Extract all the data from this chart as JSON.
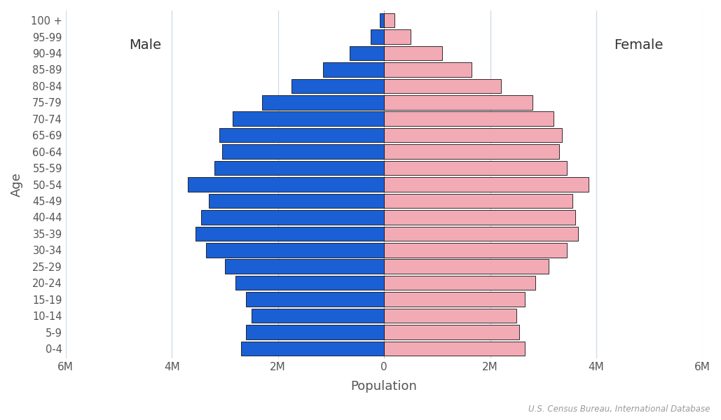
{
  "age_groups": [
    "0-4",
    "5-9",
    "10-14",
    "15-19",
    "20-24",
    "25-29",
    "30-34",
    "35-39",
    "40-44",
    "45-49",
    "50-54",
    "55-59",
    "60-64",
    "65-69",
    "70-74",
    "75-79",
    "80-84",
    "85-89",
    "90-94",
    "95-99",
    "100 +"
  ],
  "male": [
    2.7,
    2.6,
    2.5,
    2.6,
    2.8,
    3.0,
    3.35,
    3.55,
    3.45,
    3.3,
    3.7,
    3.2,
    3.05,
    3.1,
    2.85,
    2.3,
    1.75,
    1.15,
    0.65,
    0.25,
    0.08
  ],
  "female": [
    2.65,
    2.55,
    2.5,
    2.65,
    2.85,
    3.1,
    3.45,
    3.65,
    3.6,
    3.55,
    3.85,
    3.45,
    3.3,
    3.35,
    3.2,
    2.8,
    2.2,
    1.65,
    1.1,
    0.5,
    0.2
  ],
  "male_color": "#1a5fd4",
  "female_color": "#f2aab5",
  "edge_color": "#111111",
  "bar_edge_width": 0.6,
  "xlabel": "Population",
  "ylabel": "Age",
  "xlim": [
    -6,
    6
  ],
  "xticks": [
    -6,
    -4,
    -2,
    0,
    2,
    4,
    6
  ],
  "xtick_labels": [
    "6M",
    "4M",
    "2M",
    "0",
    "2M",
    "4M",
    "6M"
  ],
  "male_label": "Male",
  "female_label": "Female",
  "source_text": "U.S. Census Bureau, International Database",
  "background_color": "#ffffff",
  "grid_color": "#ccd8e8",
  "label_fontsize": 13,
  "tick_fontsize": 11,
  "ytick_fontsize": 10.5
}
